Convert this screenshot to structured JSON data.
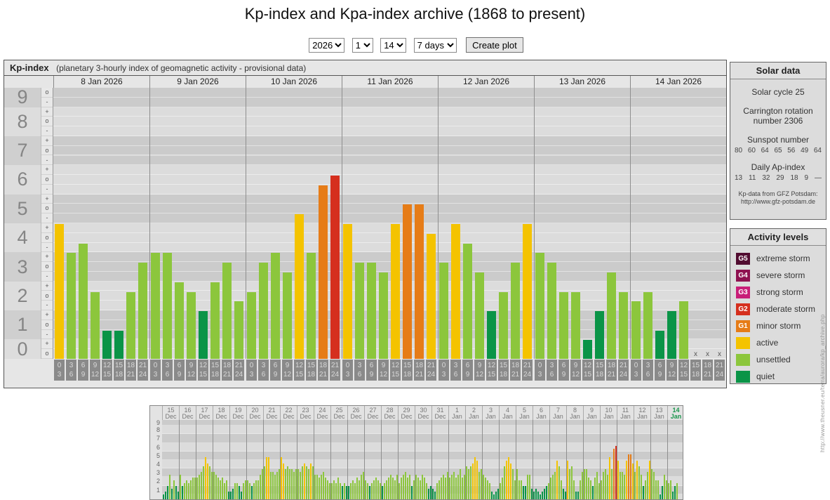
{
  "page": {
    "title": "Kp-index and Kpa-index archive (1868 to present)"
  },
  "controls": {
    "year": "2026",
    "month": "1",
    "day": "14",
    "range": "7 days",
    "create_button": "Create plot"
  },
  "kp_colors": {
    "quiet": "#0a9447",
    "unsettled": "#8cc63c",
    "active": "#f4c300",
    "g1": "#e67c17",
    "g2": "#d52f1e",
    "g3": "#c81e78",
    "g4": "#8e1150",
    "g5": "#510c30"
  },
  "main_chart": {
    "title_bold": "Kp-index",
    "title_note": "(planetary 3-hourly index of geomagnetic activity - provisional data)",
    "missing_marker": "x",
    "y_units": [
      9,
      8,
      7,
      6,
      5,
      4,
      3,
      2,
      1,
      0
    ],
    "sub_ticks": [
      "+",
      "o",
      "-"
    ],
    "time_slots": [
      [
        "0",
        "3"
      ],
      [
        "3",
        "6"
      ],
      [
        "6",
        "9"
      ],
      [
        "9",
        "12"
      ],
      [
        "12",
        "15"
      ],
      [
        "15",
        "18"
      ],
      [
        "18",
        "21"
      ],
      [
        "21",
        "24"
      ]
    ]
  },
  "chart_data": [
    {
      "type": "bar",
      "title": "Kp-index (planetary 3-hourly index of geomagnetic activity - provisional data)",
      "ylabel": "Kp",
      "ylim": [
        0,
        9
      ],
      "categories": [
        "0-3",
        "3-6",
        "6-9",
        "9-12",
        "12-15",
        "15-18",
        "18-21",
        "21-24"
      ],
      "series": [
        {
          "name": "8 Jan 2026",
          "values": [
            "4+",
            "3+",
            "4-",
            "2o",
            "1-",
            "1-",
            "2o",
            "3o"
          ]
        },
        {
          "name": "9 Jan 2026",
          "values": [
            "3+",
            "3+",
            "2+",
            "2o",
            "1+",
            "2+",
            "3o",
            "2-"
          ]
        },
        {
          "name": "10 Jan 2026",
          "values": [
            "2o",
            "3o",
            "3+",
            "3-",
            "5-",
            "3+",
            "6-",
            "6o"
          ]
        },
        {
          "name": "11 Jan 2026",
          "values": [
            "4+",
            "3o",
            "3o",
            "3-",
            "4+",
            "5o",
            "5o",
            "4o"
          ]
        },
        {
          "name": "12 Jan 2026",
          "values": [
            "3o",
            "4+",
            "4-",
            "3-",
            "1+",
            "2o",
            "3o",
            "4+"
          ]
        },
        {
          "name": "13 Jan 2026",
          "values": [
            "3+",
            "3o",
            "2o",
            "2o",
            "0+",
            "1+",
            "3-",
            "2o"
          ]
        },
        {
          "name": "14 Jan 2026",
          "values": [
            "2-",
            "2o",
            "1-",
            "1+",
            "2-",
            null,
            null,
            null
          ]
        }
      ],
      "legend_position": "right"
    },
    {
      "type": "bar",
      "title": "Kp overview 15 Dec - 14 Jan",
      "ylim": [
        0,
        9
      ],
      "y_labels": [
        "9",
        "8",
        "7",
        "6",
        "5",
        "4",
        "3",
        "2",
        "1"
      ],
      "days": [
        {
          "label": "15",
          "month": "Dec",
          "values": [
            "0+",
            "1-",
            "1+",
            "3-",
            "1o",
            "2o",
            "1+",
            "1-"
          ]
        },
        {
          "label": "16",
          "month": "Dec",
          "values": [
            "3-",
            "1+",
            "2-",
            "2o",
            "2-",
            "2o",
            "2+",
            "2+"
          ]
        },
        {
          "label": "17",
          "month": "Dec",
          "values": [
            "2+",
            "3-",
            "3o",
            "4-",
            "5-",
            "4o",
            "4-",
            "3o"
          ]
        },
        {
          "label": "18",
          "month": "Dec",
          "values": [
            "3o",
            "3-",
            "2+",
            "2o",
            "2+",
            "2-",
            "2o",
            "1-"
          ]
        },
        {
          "label": "19",
          "month": "Dec",
          "values": [
            "1-",
            "1o",
            "2-",
            "2-",
            "1+",
            "1-",
            "2-",
            "2o"
          ]
        },
        {
          "label": "20",
          "month": "Dec",
          "values": [
            "2o",
            "2-",
            "1+",
            "2-",
            "2o",
            "2o",
            "3-",
            "3+"
          ]
        },
        {
          "label": "21",
          "month": "Dec",
          "values": [
            "4-",
            "5-",
            "5-",
            "3o",
            "3o",
            "3-",
            "3o",
            "3+"
          ]
        },
        {
          "label": "22",
          "month": "Dec",
          "values": [
            "5-",
            "4o",
            "3+",
            "4-",
            "3+",
            "3+",
            "3o",
            "3+"
          ]
        },
        {
          "label": "23",
          "month": "Dec",
          "values": [
            "3+",
            "3o",
            "4-",
            "4o",
            "4-",
            "3+",
            "4o",
            "4-"
          ]
        },
        {
          "label": "24",
          "month": "Dec",
          "values": [
            "3-",
            "3-",
            "2+",
            "3-",
            "3o",
            "2+",
            "2o",
            "2-"
          ]
        },
        {
          "label": "25",
          "month": "Dec",
          "values": [
            "2-",
            "2o",
            "2-",
            "2+",
            "2-",
            "1+",
            "2-",
            "1+"
          ]
        },
        {
          "label": "26",
          "month": "Dec",
          "values": [
            "1+",
            "2-",
            "2o",
            "2-",
            "2+",
            "2o",
            "3-",
            "3o"
          ]
        },
        {
          "label": "27",
          "month": "Dec",
          "values": [
            "2o",
            "2-",
            "1+",
            "2-",
            "2o",
            "2+",
            "2o",
            "2-"
          ]
        },
        {
          "label": "28",
          "month": "Dec",
          "values": [
            "1+",
            "2-",
            "2o",
            "2+",
            "3-",
            "2+",
            "2o",
            "3-"
          ]
        },
        {
          "label": "29",
          "month": "Dec",
          "values": [
            "2-",
            "2+",
            "3-",
            "3o",
            "2+",
            "3-",
            "1+",
            "2o"
          ]
        },
        {
          "label": "30",
          "month": "Dec",
          "values": [
            "3-",
            "2+",
            "2o",
            "3-",
            "2+",
            "2-",
            "1o",
            "1+"
          ]
        },
        {
          "label": "31",
          "month": "Dec",
          "values": [
            "1o",
            "1-",
            "2-",
            "2o",
            "2+",
            "3-",
            "2+",
            "3o"
          ]
        },
        {
          "label": "1",
          "month": "Jan",
          "values": [
            "2+",
            "3-",
            "3o",
            "2+",
            "3-",
            "3+",
            "2+",
            "3-"
          ]
        },
        {
          "label": "2",
          "month": "Jan",
          "values": [
            "4-",
            "3+",
            "4-",
            "4o",
            "5-",
            "4+",
            "3o",
            "3+"
          ]
        },
        {
          "label": "3",
          "month": "Jan",
          "values": [
            "3-",
            "2+",
            "2o",
            "2-",
            "1-",
            "0+",
            "1-",
            "1o"
          ]
        },
        {
          "label": "4",
          "month": "Jan",
          "values": [
            "2-",
            "2+",
            "4-",
            "4+",
            "5-",
            "4o",
            "3+",
            "2o"
          ]
        },
        {
          "label": "5",
          "month": "Jan",
          "values": [
            "3+",
            "2o",
            "2o",
            "1+",
            "1+",
            "3-",
            "3-",
            "1o"
          ]
        },
        {
          "label": "6",
          "month": "Jan",
          "values": [
            "1-",
            "1o",
            "1-",
            "0+",
            "1-",
            "1o",
            "1+",
            "2-"
          ]
        },
        {
          "label": "7",
          "month": "Jan",
          "values": [
            "2+",
            "3-",
            "3o",
            "4+",
            "4-",
            "2o",
            "1o",
            "1-"
          ]
        },
        {
          "label": "8",
          "month": "Jan",
          "values": [
            "4+",
            "3+",
            "4-",
            "2o",
            "1-",
            "1-",
            "2o",
            "3o"
          ]
        },
        {
          "label": "9",
          "month": "Jan",
          "values": [
            "3+",
            "3+",
            "2+",
            "2o",
            "1+",
            "2+",
            "3o",
            "2-"
          ]
        },
        {
          "label": "10",
          "month": "Jan",
          "values": [
            "2o",
            "3o",
            "3+",
            "3-",
            "5-",
            "3+",
            "6-",
            "6o"
          ]
        },
        {
          "label": "11",
          "month": "Jan",
          "values": [
            "4+",
            "3o",
            "3o",
            "3-",
            "4+",
            "5o",
            "5o",
            "4o"
          ]
        },
        {
          "label": "12",
          "month": "Jan",
          "values": [
            "3o",
            "4+",
            "4-",
            "3-",
            "1+",
            "2o",
            "3o",
            "4+"
          ]
        },
        {
          "label": "13",
          "month": "Jan",
          "values": [
            "3+",
            "3o",
            "2o",
            "2o",
            "0+",
            "1+",
            "3-",
            "2o"
          ]
        },
        {
          "label": "14",
          "month": "Jan",
          "values": [
            "2-",
            "2o",
            "1-",
            "1+",
            "2-",
            null,
            null,
            null
          ],
          "highlight": true
        }
      ]
    }
  ],
  "solar_data": {
    "title": "Solar data",
    "cycle": "Solar cycle 25",
    "carrington": "Carrington rotation number 2306",
    "sunspot_label": "Sunspot number",
    "sunspot_values": [
      "80",
      "60",
      "64",
      "65",
      "56",
      "49",
      "64"
    ],
    "ap_label": "Daily Ap-index",
    "ap_values": [
      "13",
      "11",
      "32",
      "29",
      "18",
      "9",
      "—"
    ],
    "source_line1": "Kp-data from GFZ Potsdam:",
    "source_line2": "http://www.gfz-potsdam.de"
  },
  "activity_levels": {
    "title": "Activity levels",
    "items": [
      {
        "badge": "G5",
        "label": "extreme storm",
        "color": "#510c30"
      },
      {
        "badge": "G4",
        "label": "severe storm",
        "color": "#8e1150"
      },
      {
        "badge": "G3",
        "label": "strong storm",
        "color": "#c81e78"
      },
      {
        "badge": "G2",
        "label": "moderate storm",
        "color": "#d52f1e"
      },
      {
        "badge": "G1",
        "label": "minor storm",
        "color": "#e67c17"
      },
      {
        "badge": "",
        "label": "active",
        "color": "#f4c300"
      },
      {
        "badge": "",
        "label": "unsettled",
        "color": "#8cc63c"
      },
      {
        "badge": "",
        "label": "quiet",
        "color": "#0a9447"
      }
    ]
  },
  "watermark": "http://www.theusner.eu/terra/aurora/kp_archive.php"
}
